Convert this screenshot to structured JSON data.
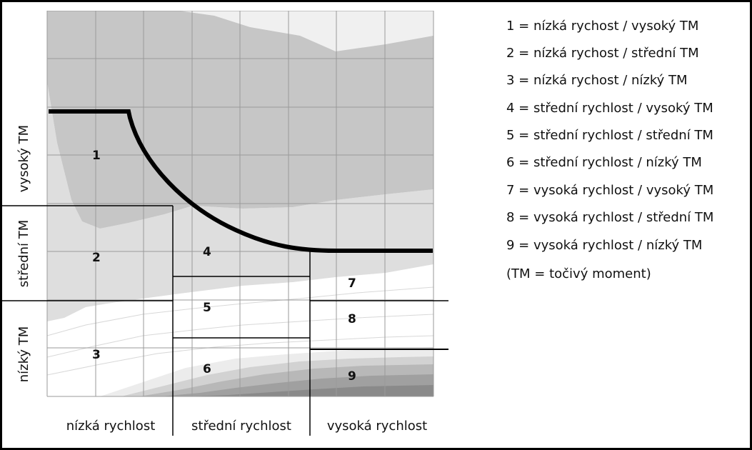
{
  "zones": [
    {
      "id": "zone-1",
      "number": "1"
    },
    {
      "id": "zone-2",
      "number": "2"
    },
    {
      "id": "zone-3",
      "number": "3"
    },
    {
      "id": "zone-4",
      "number": "4"
    },
    {
      "id": "zone-5",
      "number": "5"
    },
    {
      "id": "zone-6",
      "number": "6"
    },
    {
      "id": "zone-7",
      "number": "7"
    },
    {
      "id": "zone-8",
      "number": "8"
    },
    {
      "id": "zone-9",
      "number": "9"
    }
  ],
  "x_axis": {
    "low": "nízká rychlost",
    "mid": "střední rychlost",
    "high": "vysoká rychlost"
  },
  "y_axis": {
    "high": "vysoký TM",
    "mid": "střední TM",
    "low": "nízký TM"
  },
  "legend": [
    "1 = nízká rychost / vysoký TM",
    "2 = nízká rychost / střední TM",
    "3 = nízká rychost / nízký TM",
    "4 = střední rychlost / vysoký TM",
    "5 = střední rychlost / střední TM",
    "6 = střední rychlost / nízký TM",
    "7 = vysoká rychlost / vysoký TM",
    "8 = vysoká rychlost / střední TM",
    "9 = vysoká rychlost / nízký TM",
    "(TM = točivý moment)"
  ],
  "colors": {
    "frame": "#000000",
    "curve": "#000000",
    "fill_top": "#c4c4c4",
    "fill_upper": "#e0e0e0",
    "fill_lower": "#ffffff",
    "fill_dark": "#808080",
    "grid": "#9a9a9a"
  }
}
